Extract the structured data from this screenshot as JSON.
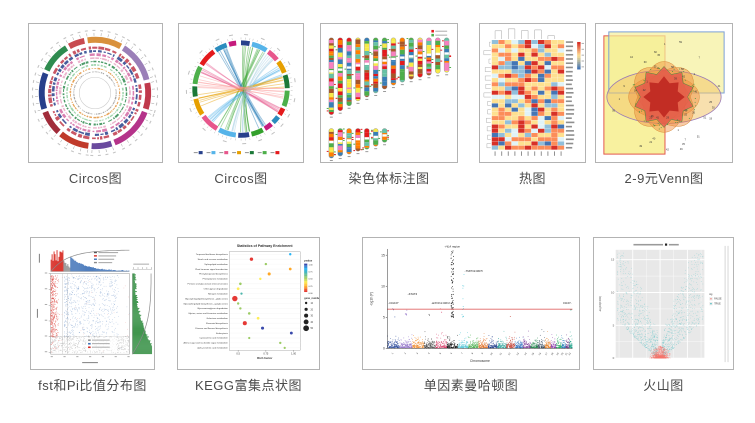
{
  "chart_data": [
    {
      "type": "other",
      "subtype": "circos_tracks",
      "caption": "Circos图",
      "outer_segments": [
        {
          "span": 34,
          "color": "#d9913c"
        },
        {
          "span": 40,
          "color": "#9b7fb8"
        },
        {
          "span": 26,
          "color": "#c0394b"
        },
        {
          "span": 44,
          "color": "#b5338a"
        },
        {
          "span": 20,
          "color": "#6a4a9e"
        },
        {
          "span": 30,
          "color": "#c03a2b"
        },
        {
          "span": 24,
          "color": "#a12c3a"
        },
        {
          "span": 36,
          "color": "#27408b"
        },
        {
          "span": 30,
          "color": "#2f8b4f"
        },
        {
          "span": 16,
          "color": "#c84b50"
        }
      ],
      "track_colors": [
        "#c0394b",
        "#27408b",
        "#d46aa3",
        "#e8a7c3",
        "#2f8b4f",
        "#8fce9f",
        "#e2933c",
        "#999999"
      ]
    },
    {
      "type": "other",
      "subtype": "circos_chord",
      "caption": "Circos图",
      "segment_colors": [
        "#27408b",
        "#56b4e9",
        "#e7578c",
        "#e69f00",
        "#1b7837",
        "#4daf4a",
        "#e41a1c",
        "#2b8cbe",
        "#c51b7d",
        "#33a02c"
      ],
      "ribbon_bundles": [
        {
          "from": 205,
          "to": 25,
          "color": "#4daf4a"
        },
        {
          "from": 150,
          "to": 335,
          "color": "#1f78b4"
        },
        {
          "from": 65,
          "to": 225,
          "color": "#56b4e9"
        },
        {
          "from": 120,
          "to": 300,
          "color": "#e7578c"
        },
        {
          "from": 80,
          "to": 255,
          "color": "#e69f00"
        },
        {
          "from": 175,
          "to": 10,
          "color": "#33a02c"
        },
        {
          "from": 40,
          "to": 185,
          "color": "#a6cee3"
        },
        {
          "from": 280,
          "to": 95,
          "color": "#fb9a99"
        }
      ],
      "legend_colors": [
        "#27408b",
        "#56b4e9",
        "#e7578c",
        "#e69f00",
        "#1b7837",
        "#4daf4a",
        "#e41a1c"
      ]
    },
    {
      "type": "other",
      "subtype": "karyotype",
      "caption": "染色体标注图",
      "row1_heights": [
        78,
        74,
        69,
        64,
        60,
        56,
        52,
        48,
        45,
        42,
        40,
        38,
        36,
        35
      ],
      "row2_heights": [
        30,
        28,
        26,
        23,
        21,
        18,
        14
      ],
      "band_colors": [
        "#e41a1c",
        "#4daf4a",
        "#377eb8",
        "#ff7f00",
        "#f7e948",
        "#f781bf",
        "#a65628",
        "#66c2a5"
      ],
      "legend_colors": [
        "#e41a1c",
        "#4daf4a"
      ]
    },
    {
      "type": "heatmap",
      "subtype": "clustered_heatmap",
      "caption": "热图",
      "cols": 11,
      "rows": 26,
      "palette": [
        "#4575b4",
        "#91bfdb",
        "#e0f3f8",
        "#fee090",
        "#fc8d59",
        "#d73027"
      ],
      "colorbar": [
        "#d73027",
        "#fee090",
        "#4575b4"
      ]
    },
    {
      "type": "other",
      "subtype": "venn",
      "caption": "2-9元Venn图",
      "colors": {
        "rect_tall_fill": "#f7ee8e",
        "rect_tall_stroke": "#e2574c",
        "rect_wide_fill": "#f5ef9a",
        "rect_wide_stroke": "#7b9fd4",
        "ellipse_fill": "#f3c76b",
        "ellipse_stroke": "#9a7bb5",
        "petal_fill": "#ef8c3b",
        "petal_stroke": "#d98a3a",
        "star_fill": "#e2574c",
        "core_fill": "#c02a22",
        "dot_stroke": "#3f8f3f"
      }
    },
    {
      "type": "scatter",
      "subtype": "fst_pi_distribution",
      "caption": "fst和Pi比值分布图",
      "colors": {
        "left": "#d7261e",
        "mid": "#3b6fb6",
        "right": "#2e8b3d",
        "bottom": "#8f8f8f",
        "curve": "#8a8a8a"
      }
    },
    {
      "type": "scatter",
      "subtype": "kegg_dotplot",
      "caption": "KEGG富集点状图",
      "title": "Statistics of Pathway Enrichment",
      "xlabel": "Rich factor",
      "x_ticks": [
        "0.5",
        "0.75",
        "1.00"
      ],
      "pathways": [
        "Terpenoid backbone biosynthesis",
        "Starch and sucrose metabolism",
        "Sphingolipid metabolism",
        "Plant hormone signal transduction",
        "Phenylpropanoid biosynthesis",
        "Phenylalanine metabolism",
        "Pentose and glucuronate interconversions",
        "Other glycan degradation",
        "Nitrogen metabolism",
        "Glycosphingolipid biosynthesis - globo series",
        "Glycosphingolipid biosynthesis - ganglio series",
        "Glycosaminoglycan degradation",
        "Glycine, serine and threonine metabolism",
        "Galactose metabolism",
        "Flavonoid biosynthesis",
        "Flavone and flavonol biosynthesis",
        "Endocytosis",
        "Cyanoamino acid metabolism",
        "Amino sugar and nucleotide sugar metabolism",
        "alpha-Linolenic acid metabolism"
      ],
      "points": [
        {
          "x": 0.97,
          "p": 0.85,
          "n": 10
        },
        {
          "x": 0.62,
          "p": 0.08,
          "n": 22
        },
        {
          "x": 0.75,
          "p": 0.45,
          "n": 10
        },
        {
          "x": 0.97,
          "p": 0.25,
          "n": 14
        },
        {
          "x": 0.78,
          "p": 0.18,
          "n": 18
        },
        {
          "x": 0.7,
          "p": 0.4,
          "n": 10
        },
        {
          "x": 0.52,
          "p": 0.55,
          "n": 12
        },
        {
          "x": 0.5,
          "p": 0.3,
          "n": 14
        },
        {
          "x": 0.53,
          "p": 0.6,
          "n": 8
        },
        {
          "x": 0.47,
          "p": 0.05,
          "n": 46
        },
        {
          "x": 0.5,
          "p": 0.5,
          "n": 10
        },
        {
          "x": 0.52,
          "p": 0.45,
          "n": 10
        },
        {
          "x": 0.6,
          "p": 0.5,
          "n": 12
        },
        {
          "x": 0.68,
          "p": 0.3,
          "n": 14
        },
        {
          "x": 0.56,
          "p": 0.02,
          "n": 30
        },
        {
          "x": 0.72,
          "p": 0.9,
          "n": 18
        },
        {
          "x": 0.98,
          "p": 0.95,
          "n": 16
        },
        {
          "x": 0.6,
          "p": 0.5,
          "n": 8
        },
        {
          "x": 0.88,
          "p": 0.55,
          "n": 10
        },
        {
          "x": 0.92,
          "p": 0.5,
          "n": 8
        }
      ],
      "legend": {
        "color_title": "pvalue",
        "color_ticks": [
          "1.00",
          "0.75",
          "0.50",
          "0.25",
          "0.00"
        ],
        "size_title": "gene_number",
        "sizes": [
          10,
          20,
          30,
          40,
          50
        ]
      }
    },
    {
      "type": "scatter",
      "subtype": "manhattan",
      "caption": "单因素曼哈顿图",
      "xlabel": "Chromosome",
      "ylabel": "-log10 (P)",
      "y_ticks": [
        0,
        5,
        10,
        15
      ],
      "chromosomes": [
        "1",
        "2",
        "3",
        "4",
        "5",
        "6",
        "7",
        "8",
        "9",
        "10",
        "11",
        "12",
        "13",
        "14",
        "15",
        "16",
        "17",
        "18",
        "19",
        "20",
        "21",
        "22"
      ],
      "chrom_colors": [
        "#2c4b9b",
        "#8f6fc8",
        "#f08c2e",
        "#4d4d4d",
        "#d63864",
        "#111111",
        "#56c8d8",
        "#4caf50",
        "#e06c1f",
        "#1f3d8c",
        "#2aa198",
        "#c0392b",
        "#2e6fbd",
        "#7d3c98",
        "#1e8449",
        "#34495e",
        "#e67e22",
        "#8e44ad",
        "#27ae60",
        "#2980b9",
        "#6c3483",
        "#16a085"
      ],
      "sig_line_y": 6.3,
      "sig_line_color": "#e06666",
      "annotations": [
        {
          "text": "HLA region",
          "chr": 6,
          "value": 16.2,
          "anchor": "middle"
        },
        {
          "text": "TNPO3-IRF5",
          "chr": 7,
          "value": 12.3,
          "anchor": "start"
        },
        {
          "text": "STAT4",
          "chr": 2,
          "value": 8.6,
          "anchor": "start"
        },
        {
          "text": "CD247",
          "chr": 1,
          "value": 7.1,
          "anchor": "start",
          "edge": "left"
        },
        {
          "text": "EXOC2-IRF4",
          "chr": 4,
          "value": 7.1,
          "anchor": "start"
        },
        {
          "text": "CD47",
          "chr": 22,
          "value": 7.1,
          "anchor": "end",
          "edge": "right"
        }
      ]
    },
    {
      "type": "scatter",
      "subtype": "volcano",
      "caption": "火山图",
      "ylabel": "-log10(FDR)",
      "y_ticks": [
        0,
        5,
        10,
        15
      ],
      "colors": {
        "up": "#2fb5ba",
        "ns": "#f8766d",
        "panel_bg": "#e8e8e8"
      },
      "legend": {
        "title": "sig",
        "items": [
          {
            "label": "FALSE",
            "color": "#f8766d"
          },
          {
            "label": "TRUE",
            "color": "#2fb5ba"
          }
        ]
      }
    }
  ]
}
